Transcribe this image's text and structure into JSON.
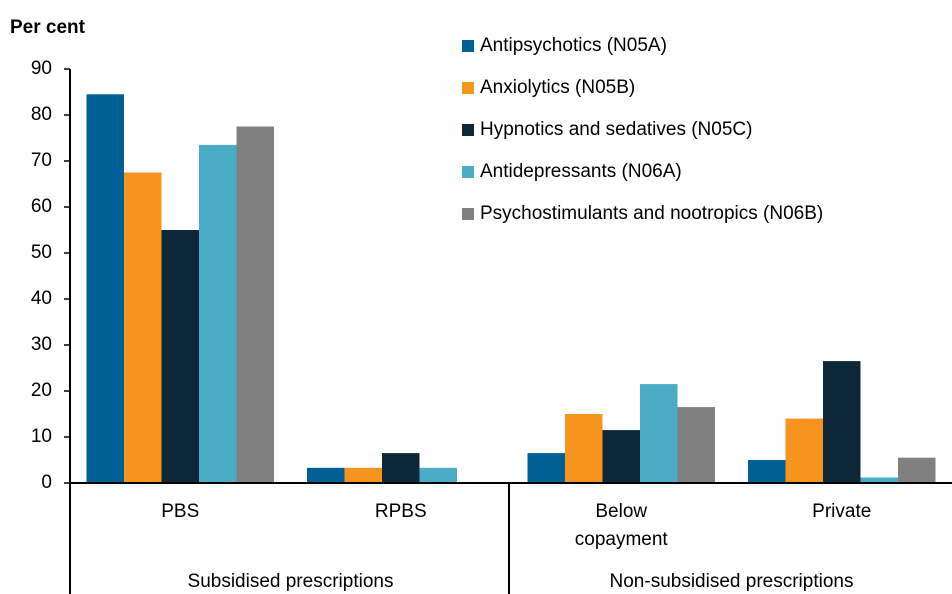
{
  "chart_data": {
    "type": "bar",
    "y_label": "Per cent",
    "categories": [
      "PBS",
      "RPBS",
      "Below copayment",
      "Private"
    ],
    "groups": [
      {
        "label": "Subsidised prescriptions",
        "span": 2
      },
      {
        "label": "Non-subsidised prescriptions",
        "span": 2
      }
    ],
    "series": [
      {
        "name": "Antipsychotics (N05A)",
        "color": "#005f94",
        "values": [
          84.5,
          3.3,
          6.5,
          5
        ]
      },
      {
        "name": "Anxiolytics (N05B)",
        "color": "#f7941d",
        "values": [
          67.5,
          3.3,
          15,
          14
        ]
      },
      {
        "name": "Hypnotics and sedatives (N05C)",
        "color": "#0b2738",
        "values": [
          55,
          6.5,
          11.5,
          26.5
        ]
      },
      {
        "name": "Antidepressants (N06A)",
        "color": "#4bacc6",
        "values": [
          73.5,
          3.3,
          21.5,
          1.2
        ]
      },
      {
        "name": "Psychostimulants and nootropics (N06B)",
        "color": "#808080",
        "values": [
          77.5,
          null,
          16.5,
          5.5
        ]
      }
    ],
    "ylim": [
      0,
      90
    ],
    "yticks": [
      0,
      10,
      20,
      30,
      40,
      50,
      60,
      70,
      80,
      90
    ],
    "legend": "top-right"
  }
}
